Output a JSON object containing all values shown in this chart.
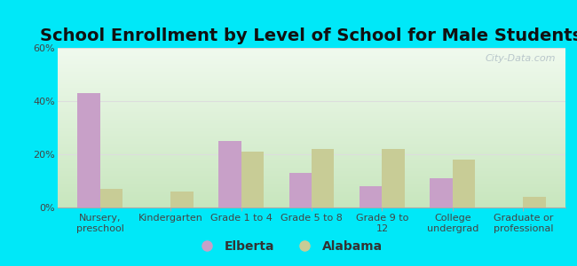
{
  "title": "School Enrollment by Level of School for Male Students",
  "categories": [
    "Nursery,\npreschool",
    "Kindergarten",
    "Grade 1 to 4",
    "Grade 5 to 8",
    "Grade 9 to\n12",
    "College\nundergrad",
    "Graduate or\nprofessional"
  ],
  "elberta": [
    43,
    0,
    25,
    13,
    8,
    11,
    0
  ],
  "alabama": [
    7,
    6,
    21,
    22,
    22,
    18,
    4
  ],
  "elberta_color": "#c8a0c8",
  "alabama_color": "#c8cc96",
  "background_outer": "#00e8f8",
  "background_inner_top": "#f0f8ee",
  "background_inner_bottom": "#d8f0d0",
  "ylim": [
    0,
    60
  ],
  "yticks": [
    0,
    20,
    40,
    60
  ],
  "ytick_labels": [
    "0%",
    "20%",
    "40%",
    "60%"
  ],
  "grid_color": "#dddddd",
  "title_fontsize": 14,
  "tick_fontsize": 8,
  "legend_fontsize": 10,
  "bar_width": 0.32,
  "watermark": "City-Data.com"
}
